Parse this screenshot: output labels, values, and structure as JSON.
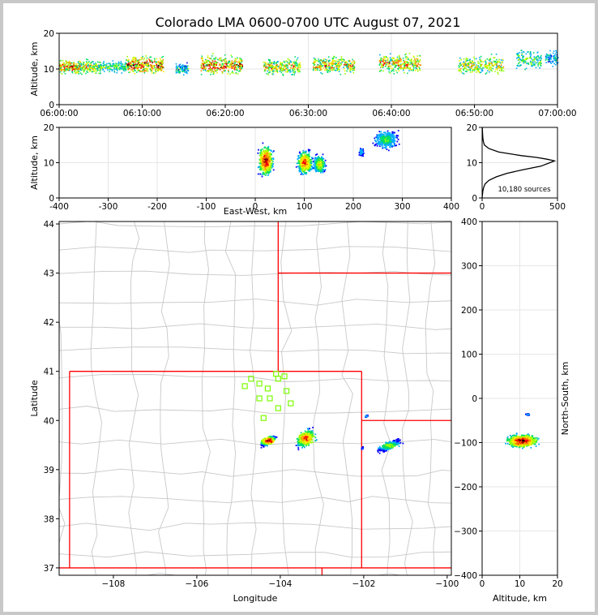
{
  "title": "Colorado LMA 0600-0700 UTC August 07, 2021",
  "colors": {
    "background": "#ffffff",
    "frame": "#c8c8c8",
    "state_border": "#ff0000",
    "county_border": "#c8c8c8",
    "station_marker": "#7cfc00",
    "grid": "#e6e6e6",
    "density_scale": [
      "#0000ff",
      "#00aaff",
      "#00dd66",
      "#99ff00",
      "#ffee00",
      "#ff8800",
      "#ff0000",
      "#8b0000",
      "#000000"
    ]
  },
  "chart_data": [
    {
      "id": "time-height",
      "type": "heatmap",
      "xlabel": "",
      "ylabel": "Altitude, km",
      "xlim": [
        "06:00:00",
        "07:00:00"
      ],
      "ylim": [
        0,
        20
      ],
      "x_ticks": [
        "06:00:00",
        "06:10:00",
        "06:20:00",
        "06:30:00",
        "06:40:00",
        "06:50:00",
        "07:00:00"
      ],
      "y_ticks": [
        "0",
        "10",
        "20"
      ],
      "grid": true,
      "clusters": [
        {
          "t_start_min": 0,
          "t_end_min": 2.5,
          "alt_center": 10.5,
          "alt_spread": 2.5,
          "intensity": 0.85
        },
        {
          "t_start_min": 2.5,
          "t_end_min": 5,
          "alt_center": 10.5,
          "alt_spread": 2.5,
          "intensity": 0.65
        },
        {
          "t_start_min": 5,
          "t_end_min": 8,
          "alt_center": 10.5,
          "alt_spread": 2,
          "intensity": 0.45
        },
        {
          "t_start_min": 8,
          "t_end_min": 12.5,
          "alt_center": 11,
          "alt_spread": 3,
          "intensity": 0.9
        },
        {
          "t_start_min": 14,
          "t_end_min": 15.5,
          "alt_center": 10,
          "alt_spread": 2,
          "intensity": 0.35
        },
        {
          "t_start_min": 17,
          "t_end_min": 22,
          "alt_center": 11,
          "alt_spread": 3.5,
          "intensity": 0.85
        },
        {
          "t_start_min": 24.5,
          "t_end_min": 29,
          "alt_center": 10.5,
          "alt_spread": 3,
          "intensity": 0.7
        },
        {
          "t_start_min": 30.5,
          "t_end_min": 35.5,
          "alt_center": 11,
          "alt_spread": 3,
          "intensity": 0.75
        },
        {
          "t_start_min": 38.5,
          "t_end_min": 43.5,
          "alt_center": 11.5,
          "alt_spread": 3.5,
          "intensity": 0.75
        },
        {
          "t_start_min": 48,
          "t_end_min": 53.5,
          "alt_center": 11,
          "alt_spread": 3.5,
          "intensity": 0.65
        },
        {
          "t_start_min": 55,
          "t_end_min": 58,
          "alt_center": 12.5,
          "alt_spread": 3.5,
          "intensity": 0.45
        },
        {
          "t_start_min": 58.5,
          "t_end_min": 60,
          "alt_center": 13,
          "alt_spread": 2.5,
          "intensity": 0.3
        }
      ]
    },
    {
      "id": "ew-height",
      "type": "heatmap",
      "xlabel": "East-West, km",
      "ylabel": "Altitude, km",
      "xlim": [
        -400,
        400
      ],
      "ylim": [
        0,
        20
      ],
      "x_ticks": [
        "-400",
        "-300",
        "-200",
        "-100",
        "0",
        "100",
        "200",
        "300",
        "400"
      ],
      "y_ticks": [
        "0",
        "10",
        "20"
      ],
      "grid": true,
      "clusters": [
        {
          "x_center": 20,
          "x_spread": 14,
          "alt_center": 10.5,
          "alt_spread": 4,
          "intensity": 1.0
        },
        {
          "x_center": 100,
          "x_spread": 14,
          "alt_center": 10,
          "alt_spread": 3,
          "intensity": 0.9
        },
        {
          "x_center": 130,
          "x_spread": 12,
          "alt_center": 9.5,
          "alt_spread": 2.5,
          "intensity": 0.6
        },
        {
          "x_center": 215,
          "x_spread": 4,
          "alt_center": 13,
          "alt_spread": 1,
          "intensity": 0.3
        },
        {
          "x_center": 265,
          "x_spread": 22,
          "alt_center": 16.5,
          "alt_spread": 2.5,
          "intensity": 0.4
        }
      ]
    },
    {
      "id": "altitude-histogram",
      "type": "line",
      "xlabel": "",
      "ylabel": "",
      "xlim": [
        0,
        500
      ],
      "ylim": [
        0,
        20
      ],
      "x_ticks": [
        "0",
        "500"
      ],
      "y_ticks": [
        "0",
        "10",
        "20"
      ],
      "grid": true,
      "annotation": "10,180 sources",
      "altitude_km": [
        0,
        1,
        2,
        3,
        4,
        5,
        6,
        7,
        8,
        9,
        10,
        10.5,
        11,
        11.5,
        12,
        13,
        14,
        15,
        16,
        17,
        18,
        19,
        20
      ],
      "count": [
        0,
        2,
        5,
        10,
        20,
        45,
        95,
        165,
        270,
        390,
        450,
        480,
        430,
        360,
        260,
        110,
        45,
        15,
        8,
        5,
        3,
        2,
        1
      ]
    },
    {
      "id": "plan-view-map",
      "type": "scatter",
      "xlabel": "Longitude",
      "ylabel": "Latitude",
      "xlim": [
        -109.3,
        -99.9
      ],
      "ylim": [
        36.85,
        44.05
      ],
      "x_ticks": [
        "−108",
        "−106",
        "−104",
        "−102",
        "−100"
      ],
      "y_ticks": [
        "37",
        "38",
        "39",
        "40",
        "41",
        "42",
        "43",
        "44"
      ],
      "grid": false,
      "stations": [
        [
          -104.1,
          40.95
        ],
        [
          -103.9,
          40.9
        ],
        [
          -104.05,
          40.85
        ],
        [
          -104.7,
          40.85
        ],
        [
          -104.5,
          40.75
        ],
        [
          -104.85,
          40.7
        ],
        [
          -104.3,
          40.65
        ],
        [
          -103.85,
          40.6
        ],
        [
          -104.5,
          40.45
        ],
        [
          -104.25,
          40.45
        ],
        [
          -103.75,
          40.35
        ],
        [
          -104.05,
          40.25
        ],
        [
          -104.4,
          40.05
        ]
      ],
      "clusters": [
        {
          "lon": -104.3,
          "lat": 39.6,
          "lon_spread": 0.18,
          "lat_spread": 0.08,
          "intensity": 1.0
        },
        {
          "lon": -103.4,
          "lat": 39.65,
          "lon_spread": 0.22,
          "lat_spread": 0.16,
          "intensity": 0.85
        },
        {
          "lon": -101.4,
          "lat": 39.5,
          "lon_spread": 0.28,
          "lat_spread": 0.08,
          "intensity": 0.5
        },
        {
          "lon": -101.95,
          "lat": 40.1,
          "lon_spread": 0.03,
          "lat_spread": 0.02,
          "intensity": 0.2
        },
        {
          "lon": -102.05,
          "lat": 39.45,
          "lon_spread": 0.02,
          "lat_spread": 0.02,
          "intensity": 0.2
        }
      ]
    },
    {
      "id": "ns-height",
      "type": "heatmap",
      "xlabel": "Altitude, km",
      "ylabel": "North-South, km",
      "xlim": [
        0,
        20
      ],
      "ylim": [
        -400,
        400
      ],
      "x_ticks": [
        "0",
        "10",
        "20"
      ],
      "y_ticks": [
        "−400",
        "−300",
        "−200",
        "−100",
        "0",
        "100",
        "200",
        "300",
        "400"
      ],
      "grid": true,
      "clusters": [
        {
          "alt_center": 10.5,
          "alt_spread": 4,
          "y_center": -95,
          "y_spread": 14,
          "intensity": 1.0
        },
        {
          "alt_center": 12,
          "alt_spread": 0.5,
          "y_center": -35,
          "y_spread": 2,
          "intensity": 0.2
        }
      ]
    }
  ]
}
